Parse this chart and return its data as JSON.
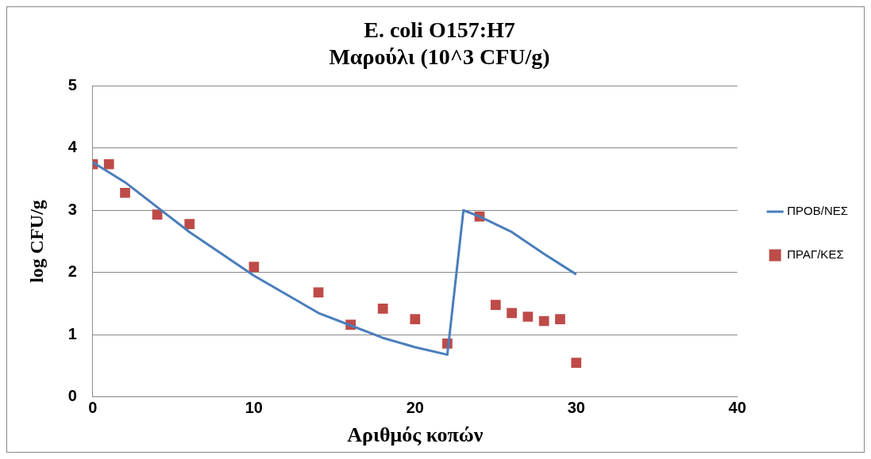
{
  "chart_data": {
    "type": "scatter",
    "title": "E. coli O157:H7",
    "subtitle": "Μαρούλι (10^3 CFU/g)",
    "xlabel": "Αριθμός κοπών",
    "ylabel": "log CFU/g",
    "xlim": [
      0,
      40
    ],
    "xticks": [
      0,
      10,
      20,
      30,
      40
    ],
    "ylim": [
      0,
      5
    ],
    "yticks": [
      0,
      1,
      2,
      3,
      4,
      5
    ],
    "grid": "y",
    "legend": "right",
    "series": [
      {
        "name": "ΠΡΟΒ/ΝΕΣ",
        "type": "line",
        "color": "#4a7ebb",
        "marker": "none",
        "line_style": "solid",
        "x": [
          0,
          2,
          4,
          6,
          8,
          10,
          12,
          14,
          16,
          18,
          20,
          22,
          23,
          24,
          26,
          28,
          30
        ],
        "values": [
          3.77,
          3.45,
          3.05,
          2.65,
          2.3,
          1.95,
          1.65,
          1.35,
          1.15,
          0.95,
          0.8,
          0.68,
          3.0,
          2.9,
          2.65,
          2.3,
          1.97
        ]
      },
      {
        "name": "ΠΡΑΓ/ΚΕΣ",
        "type": "scatter",
        "color": "#be4b48",
        "marker": "square",
        "x": [
          0,
          1,
          2,
          4,
          6,
          10,
          14,
          16,
          18,
          20,
          22,
          24,
          25,
          26,
          27,
          28,
          29,
          30
        ],
        "values": [
          3.74,
          3.74,
          3.28,
          2.93,
          2.78,
          2.09,
          1.68,
          1.16,
          1.42,
          1.25,
          0.86,
          2.9,
          1.48,
          1.35,
          1.29,
          1.22,
          1.25,
          0.55
        ]
      }
    ]
  }
}
